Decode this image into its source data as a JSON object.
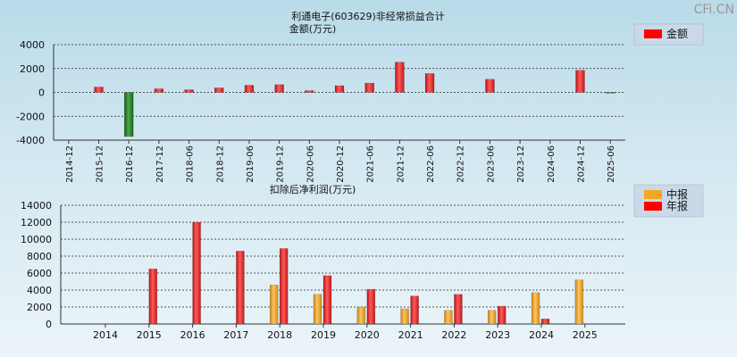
{
  "watermark": "CFi.CN",
  "chart_data": [
    {
      "type": "bar",
      "title": "利通电子(603629)非经常损益合计",
      "ylabel": "金额(万元)",
      "ylim": [
        -4000,
        4000
      ],
      "yticks": [
        4000,
        2000,
        0,
        -2000,
        -4000
      ],
      "categories": [
        "2014-12",
        "2015-12",
        "2016-12",
        "2017-12",
        "2018-06",
        "2018-12",
        "2019-06",
        "2019-12",
        "2020-06",
        "2020-12",
        "2021-06",
        "2021-12",
        "2022-06",
        "2022-12",
        "2023-06",
        "2023-12",
        "2024-06",
        "2024-12",
        "2025-06"
      ],
      "series": [
        {
          "name": "金额",
          "color": "#ff0000",
          "negative_color": "#1e7d1e",
          "values": [
            0,
            450,
            -3700,
            300,
            220,
            380,
            600,
            650,
            150,
            560,
            780,
            2530,
            1580,
            0,
            1100,
            0,
            0,
            1850,
            -40
          ]
        }
      ],
      "legend": {
        "items": [
          {
            "label": "金额",
            "color": "#ff0000"
          }
        ],
        "position": "top-right"
      },
      "grid": true
    },
    {
      "type": "bar",
      "title": "扣除后净利润(万元)",
      "ylim": [
        0,
        14000
      ],
      "yticks": [
        0,
        2000,
        4000,
        6000,
        8000,
        10000,
        12000,
        14000
      ],
      "categories": [
        "2014",
        "2015",
        "2016",
        "2017",
        "2018",
        "2019",
        "2020",
        "2021",
        "2022",
        "2023",
        "2024",
        "2025"
      ],
      "series": [
        {
          "name": "中报",
          "color": "#f5a623",
          "values": [
            null,
            null,
            null,
            null,
            4600,
            3500,
            2000,
            1800,
            1600,
            1600,
            3700,
            5200
          ]
        },
        {
          "name": "年报",
          "color": "#ff0000",
          "values": [
            null,
            6500,
            12000,
            8600,
            8900,
            5700,
            4100,
            3300,
            3500,
            2100,
            600,
            null
          ]
        }
      ],
      "legend": {
        "items": [
          {
            "label": "中报",
            "color": "#f5a623"
          },
          {
            "label": "年报",
            "color": "#ff0000"
          }
        ],
        "position": "top-right"
      },
      "grid": true
    }
  ]
}
